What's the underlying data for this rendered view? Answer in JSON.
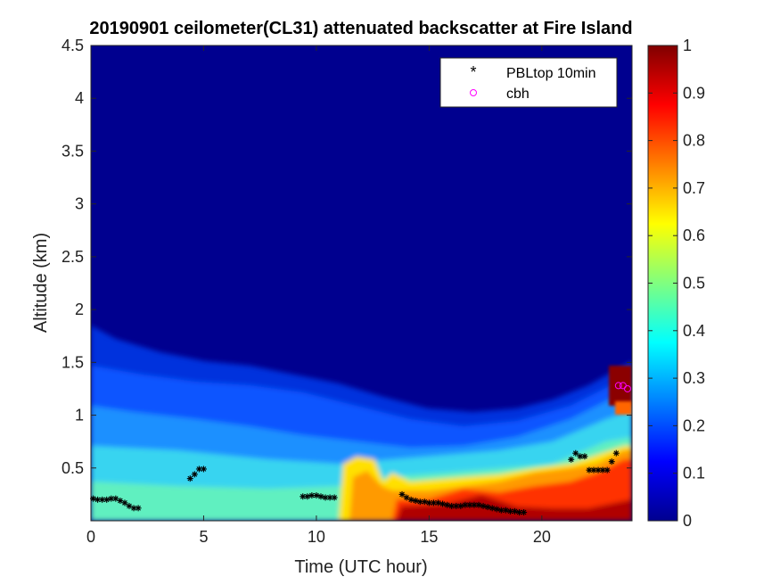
{
  "chart_data": {
    "type": "heatmap",
    "title": "20190901 ceilometer(CL31) attenuated backscatter at Fire Island",
    "xlabel": "Time (UTC hour)",
    "ylabel": "Altitude (km)",
    "xlim": [
      0,
      24
    ],
    "ylim": [
      0,
      4.5
    ],
    "xticks": [
      0,
      5,
      10,
      15,
      20
    ],
    "xtick_labels": [
      "0",
      "5",
      "10",
      "15",
      "20"
    ],
    "yticks": [
      0.5,
      1,
      1.5,
      2,
      2.5,
      3,
      3.5,
      4,
      4.5
    ],
    "ytick_labels": [
      "0.5",
      "1",
      "1.5",
      "2",
      "2.5",
      "3",
      "3.5",
      "4",
      "4.5"
    ],
    "colorbar": {
      "range": [
        0,
        1
      ],
      "ticks": [
        0,
        0.1,
        0.2,
        0.3,
        0.4,
        0.5,
        0.6,
        0.7,
        0.8,
        0.9,
        1
      ],
      "tick_labels": [
        "0",
        "0.1",
        "0.2",
        "0.3",
        "0.4",
        "0.5",
        "0.6",
        "0.7",
        "0.8",
        "0.9",
        "1"
      ],
      "colormap": "jet"
    },
    "background_color": "#00008f",
    "legend": {
      "position": "top-right",
      "entries": [
        {
          "label": "PBLtop 10min",
          "marker": "*",
          "color": "#000000"
        },
        {
          "label": "cbh",
          "marker": "o",
          "color": "#ff00ff"
        }
      ]
    },
    "series": [
      {
        "name": "PBLtop 10min",
        "marker": "*",
        "color": "#000000",
        "points": [
          [
            0.1,
            0.21
          ],
          [
            0.3,
            0.2
          ],
          [
            0.5,
            0.2
          ],
          [
            0.7,
            0.2
          ],
          [
            0.9,
            0.21
          ],
          [
            1.1,
            0.21
          ],
          [
            1.3,
            0.19
          ],
          [
            1.5,
            0.17
          ],
          [
            1.7,
            0.14
          ],
          [
            1.9,
            0.12
          ],
          [
            2.1,
            0.12
          ],
          [
            4.4,
            0.4
          ],
          [
            4.6,
            0.44
          ],
          [
            4.8,
            0.49
          ],
          [
            5.0,
            0.49
          ],
          [
            9.4,
            0.23
          ],
          [
            9.6,
            0.23
          ],
          [
            9.8,
            0.24
          ],
          [
            10.0,
            0.24
          ],
          [
            10.2,
            0.23
          ],
          [
            10.4,
            0.22
          ],
          [
            10.6,
            0.22
          ],
          [
            10.8,
            0.22
          ],
          [
            13.8,
            0.25
          ],
          [
            14.0,
            0.22
          ],
          [
            14.2,
            0.2
          ],
          [
            14.4,
            0.19
          ],
          [
            14.6,
            0.18
          ],
          [
            14.8,
            0.18
          ],
          [
            15.0,
            0.17
          ],
          [
            15.2,
            0.17
          ],
          [
            15.4,
            0.17
          ],
          [
            15.6,
            0.16
          ],
          [
            15.8,
            0.15
          ],
          [
            16.0,
            0.14
          ],
          [
            16.2,
            0.14
          ],
          [
            16.4,
            0.14
          ],
          [
            16.6,
            0.15
          ],
          [
            16.8,
            0.15
          ],
          [
            17.0,
            0.15
          ],
          [
            17.2,
            0.15
          ],
          [
            17.4,
            0.14
          ],
          [
            17.6,
            0.13
          ],
          [
            17.8,
            0.12
          ],
          [
            18.0,
            0.11
          ],
          [
            18.2,
            0.1
          ],
          [
            18.4,
            0.1
          ],
          [
            18.6,
            0.09
          ],
          [
            18.8,
            0.09
          ],
          [
            19.0,
            0.08
          ],
          [
            19.2,
            0.08
          ],
          [
            21.3,
            0.58
          ],
          [
            21.5,
            0.64
          ],
          [
            21.7,
            0.61
          ],
          [
            21.9,
            0.61
          ],
          [
            22.1,
            0.48
          ],
          [
            22.3,
            0.48
          ],
          [
            22.5,
            0.48
          ],
          [
            22.7,
            0.48
          ],
          [
            22.9,
            0.48
          ],
          [
            23.1,
            0.56
          ],
          [
            23.3,
            0.64
          ]
        ]
      },
      {
        "name": "cbh",
        "marker": "o",
        "color": "#ff00ff",
        "points": [
          [
            23.4,
            1.28
          ],
          [
            23.6,
            1.28
          ],
          [
            23.8,
            1.25
          ]
        ]
      }
    ]
  }
}
